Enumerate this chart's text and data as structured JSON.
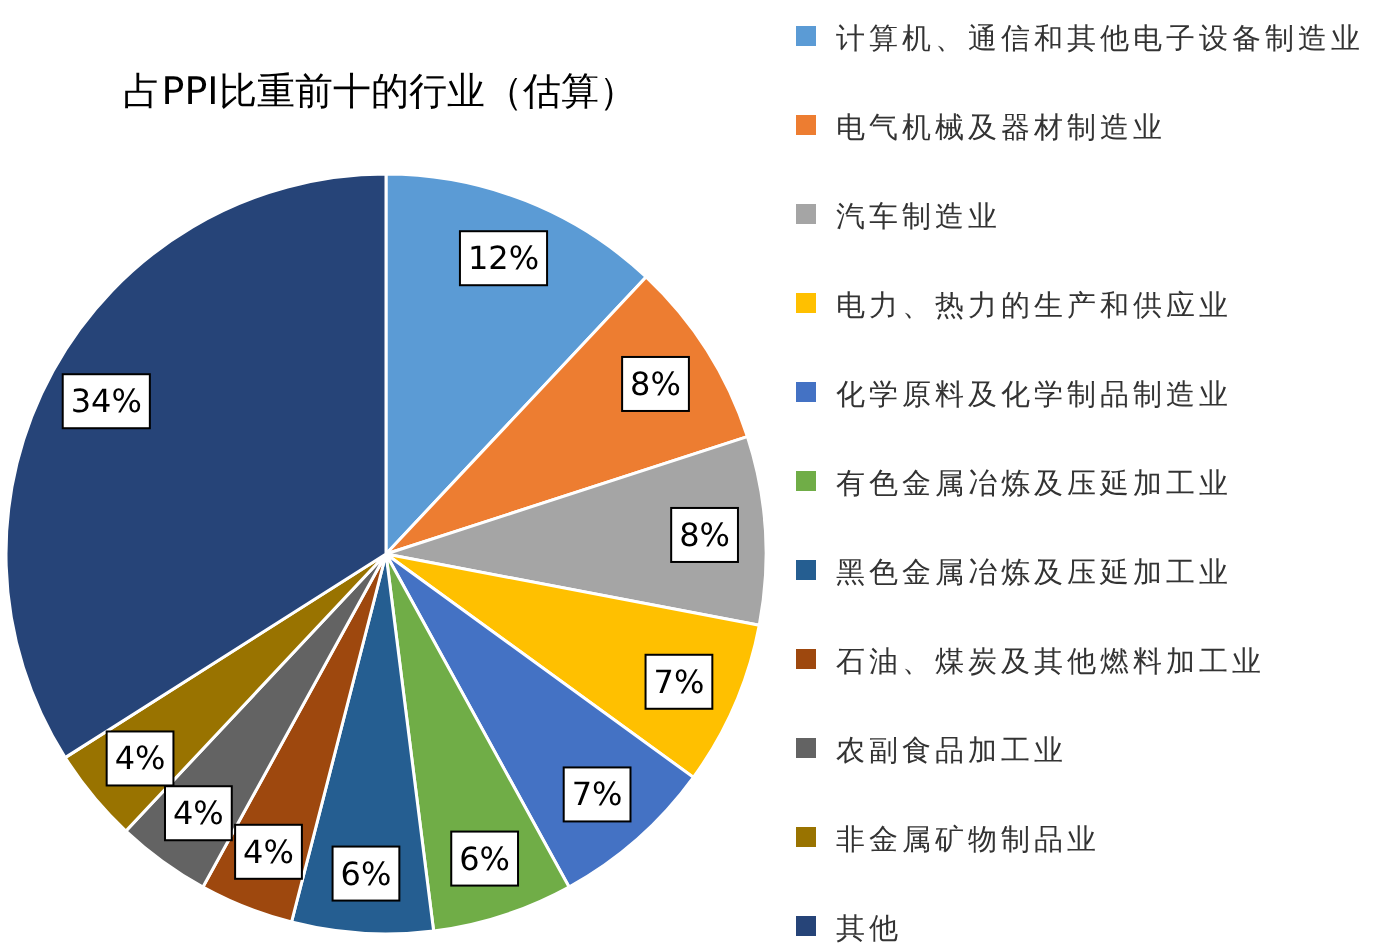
{
  "chart_data": {
    "type": "pie",
    "title": "占PPI比重前十的行业（估算）",
    "categories": [
      "计算机、通信和其他电子设备制造业",
      "电气机械及器材制造业",
      "汽车制造业",
      "电力、热力的生产和供应业",
      "化学原料及化学制品制造业",
      "有色金属冶炼及压延加工业",
      "黑色金属冶炼及压延加工业",
      "石油、煤炭及其他燃料加工业",
      "农副食品加工业",
      "非金属矿物制品业",
      "其他"
    ],
    "values": [
      12,
      8,
      8,
      7,
      7,
      6,
      6,
      4,
      4,
      4,
      34
    ],
    "colors": [
      "#5b9bd5",
      "#ed7d31",
      "#a5a5a5",
      "#ffc000",
      "#4472c4",
      "#70ad47",
      "#255e91",
      "#9e480e",
      "#636363",
      "#997300",
      "#264478"
    ],
    "value_labels": [
      "12%",
      "8%",
      "8%",
      "7%",
      "7%",
      "6%",
      "6%",
      "4%",
      "4%",
      "4%",
      "34%"
    ],
    "legend": "right"
  }
}
